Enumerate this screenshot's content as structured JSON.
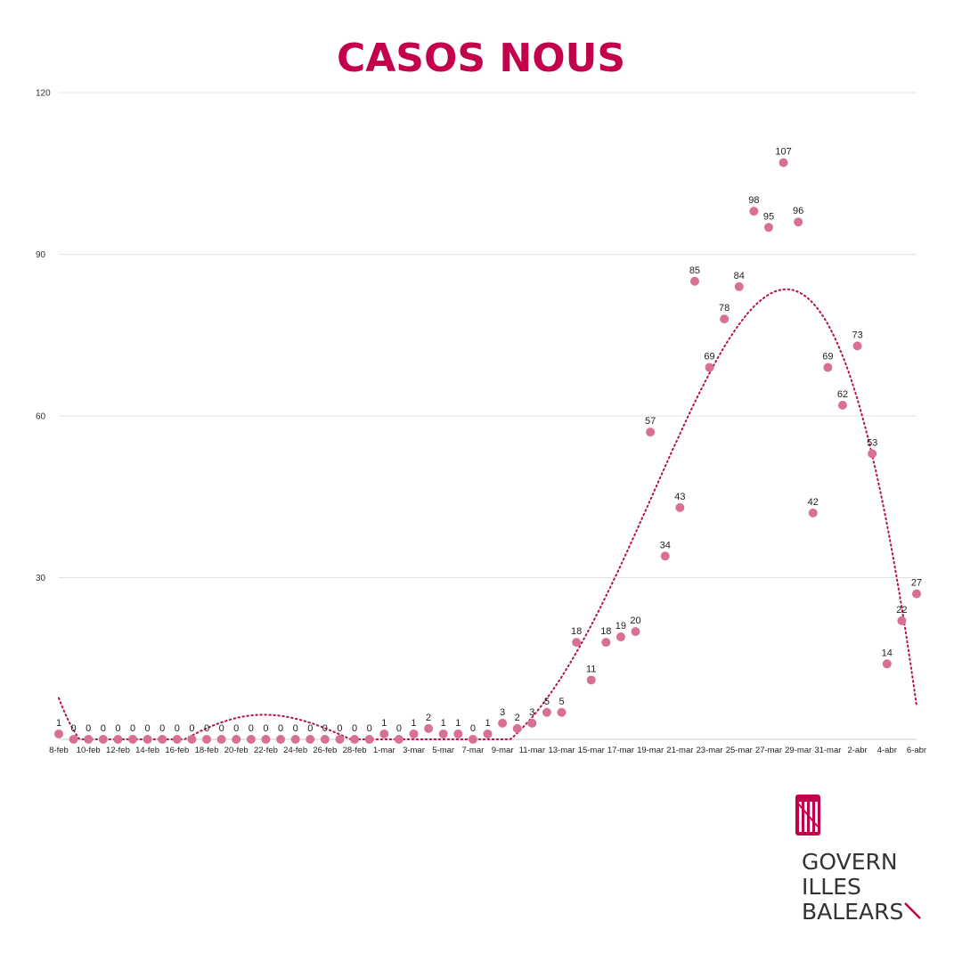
{
  "colors": {
    "title": "#c2004b",
    "points": "#d87095",
    "trend": "#b5124d",
    "grid": "#e2e2e2"
  },
  "logo": {
    "line1": "GOVERN",
    "line2": "ILLES",
    "line3": "BALEARS"
  },
  "chart_data": {
    "type": "scatter",
    "title": "CASOS NOUS",
    "xlabel": "",
    "ylabel": "",
    "ylim": [
      0,
      120
    ],
    "yticks": [
      30,
      60,
      90,
      120
    ],
    "grid": true,
    "trendline": "polynomial (dotted)",
    "categories": [
      "8-feb",
      "9-feb",
      "10-feb",
      "11-feb",
      "12-feb",
      "13-feb",
      "14-feb",
      "15-feb",
      "16-feb",
      "17-feb",
      "18-feb",
      "19-feb",
      "20-feb",
      "21-feb",
      "22-feb",
      "23-feb",
      "24-feb",
      "25-feb",
      "26-feb",
      "27-feb",
      "28-feb",
      "29-feb",
      "1-mar",
      "2-mar",
      "3-mar",
      "4-mar",
      "5-mar",
      "6-mar",
      "7-mar",
      "8-mar",
      "9-mar",
      "10-mar",
      "11-mar",
      "12-mar",
      "13-mar",
      "14-mar",
      "15-mar",
      "16-mar",
      "17-mar",
      "18-mar",
      "19-mar",
      "20-mar",
      "21-mar",
      "22-mar",
      "23-mar",
      "24-mar",
      "25-mar",
      "26-mar",
      "27-mar",
      "28-mar",
      "29-mar",
      "30-mar",
      "31-mar",
      "1-abr",
      "2-abr",
      "3-abr",
      "4-abr",
      "5-abr",
      "6-abr"
    ],
    "xtick_labels": [
      "8-feb",
      "10-feb",
      "12-feb",
      "14-feb",
      "16-feb",
      "18-feb",
      "20-feb",
      "22-feb",
      "24-feb",
      "26-feb",
      "28-feb",
      "1-mar",
      "3-mar",
      "5-mar",
      "7-mar",
      "9-mar",
      "11-mar",
      "13-mar",
      "15-mar",
      "17-mar",
      "19-mar",
      "21-mar",
      "23-mar",
      "25-mar",
      "27-mar",
      "29-mar",
      "31-mar",
      "2-abr",
      "4-abr",
      "6-abr"
    ],
    "values": [
      1,
      0,
      0,
      0,
      0,
      0,
      0,
      0,
      0,
      0,
      0,
      0,
      0,
      0,
      0,
      0,
      0,
      0,
      0,
      0,
      0,
      0,
      1,
      0,
      1,
      2,
      1,
      1,
      0,
      1,
      3,
      2,
      3,
      5,
      5,
      18,
      11,
      18,
      19,
      20,
      57,
      34,
      43,
      85,
      69,
      78,
      84,
      98,
      95,
      107,
      96,
      42,
      69,
      62,
      73,
      53,
      14,
      22,
      27
    ]
  }
}
